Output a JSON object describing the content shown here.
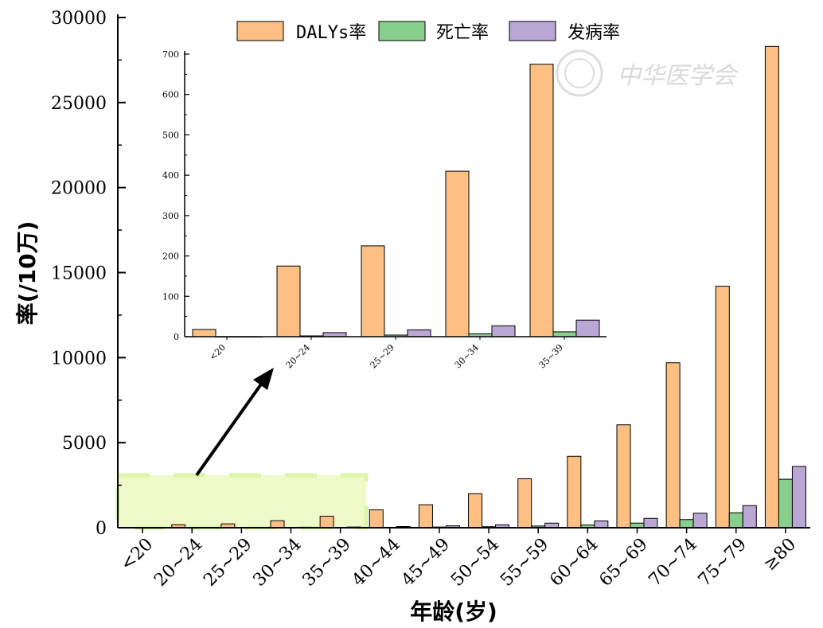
{
  "colors": {
    "dalys": "#fdc082",
    "death": "#86cf8c",
    "incidence": "#bba7d6",
    "highlight_fill": "#eefbc8",
    "highlight_stroke": "#d9f7a6"
  },
  "legend": {
    "dalys": "DALYs率",
    "death": "死亡率",
    "incidence": "发病率"
  },
  "watermark": {
    "text": "中华医学会"
  },
  "chart_data": [
    {
      "type": "bar",
      "xlabel": "年龄(岁)",
      "ylabel": "率(/10万)",
      "ylim": [
        0,
        30000
      ],
      "yticks": [
        "0",
        "5000",
        "10000",
        "15000",
        "20000",
        "25000",
        "30000"
      ],
      "categories": [
        "<20",
        "20~24",
        "25~29",
        "30~34",
        "35~39",
        "40~44",
        "45~49",
        "50~54",
        "55~59",
        "60~64",
        "65~69",
        "70~74",
        "75~79",
        "≥80"
      ],
      "series": [
        {
          "name": "DALYs率",
          "values": [
            18,
            175,
            225,
            410,
            675,
            1050,
            1350,
            2000,
            2880,
            4200,
            6050,
            9700,
            14200,
            28300
          ]
        },
        {
          "name": "死亡率",
          "values": [
            0,
            2,
            4,
            7,
            12,
            25,
            40,
            60,
            100,
            160,
            270,
            480,
            880,
            2850
          ]
        },
        {
          "name": "发病率",
          "values": [
            0,
            10,
            17,
            27,
            41,
            70,
            110,
            170,
            270,
            400,
            550,
            850,
            1300,
            3600
          ]
        }
      ],
      "legend_position": "top"
    },
    {
      "type": "bar",
      "ylim": [
        0,
        700
      ],
      "yticks": [
        "0",
        "100",
        "200",
        "300",
        "400",
        "500",
        "600",
        "700"
      ],
      "categories": [
        "<20",
        "20~24",
        "25~29",
        "30~34",
        "35~39"
      ],
      "series": [
        {
          "name": "DALYs率",
          "values": [
            18,
            175,
            225,
            410,
            675
          ]
        },
        {
          "name": "死亡率",
          "values": [
            0,
            2,
            4,
            7,
            12
          ]
        },
        {
          "name": "发病率",
          "values": [
            0,
            10,
            17,
            27,
            41
          ]
        }
      ]
    }
  ]
}
